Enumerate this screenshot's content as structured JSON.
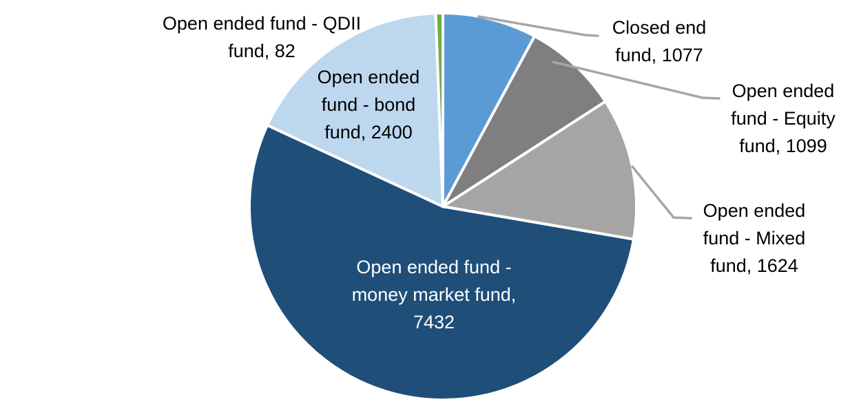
{
  "chart_data": {
    "type": "pie",
    "title": "",
    "legend": "none",
    "label_style": "category-name-and-value",
    "direction": "clockwise",
    "start_angle_deg": 0,
    "background": "#FFFFFF",
    "border_color": "#FFFFFF",
    "leader_line_color": "#A6A6A6",
    "categories": [
      "Closed end fund",
      "Open ended fund - Equity fund",
      "Open ended fund - Mixed fund",
      "Open ended fund - money market fund",
      "Open ended fund - bond fund",
      "Open ended fund - QDII fund"
    ],
    "values": [
      1077,
      1099,
      1624,
      7432,
      2400,
      82
    ],
    "slices": [
      {
        "name": "Closed end fund",
        "value": 1077,
        "color": "#5B9BD5",
        "label_text": "Closed end\nfund, 1077",
        "label_color": "#000000"
      },
      {
        "name": "Open ended fund - Equity fund",
        "value": 1099,
        "color": "#7F7F7F",
        "label_text": "Open ended\nfund - Equity\nfund, 1099",
        "label_color": "#000000"
      },
      {
        "name": "Open ended fund - Mixed fund",
        "value": 1624,
        "color": "#A5A5A5",
        "label_text": "Open ended\nfund - Mixed\nfund, 1624",
        "label_color": "#000000"
      },
      {
        "name": "Open ended fund - money market fund",
        "value": 7432,
        "color": "#1F4E79",
        "label_text": "Open ended fund -\nmoney market fund,\n7432",
        "label_color": "#FFFFFF"
      },
      {
        "name": "Open ended fund - bond fund",
        "value": 2400,
        "color": "#BDD7EE",
        "label_text": "Open ended\nfund - bond\nfund, 2400",
        "label_color": "#000000"
      },
      {
        "name": "Open ended fund - QDII fund",
        "value": 82,
        "color": "#70AD47",
        "label_text": "Open ended fund - QDII\nfund, 82",
        "label_color": "#000000"
      }
    ]
  }
}
